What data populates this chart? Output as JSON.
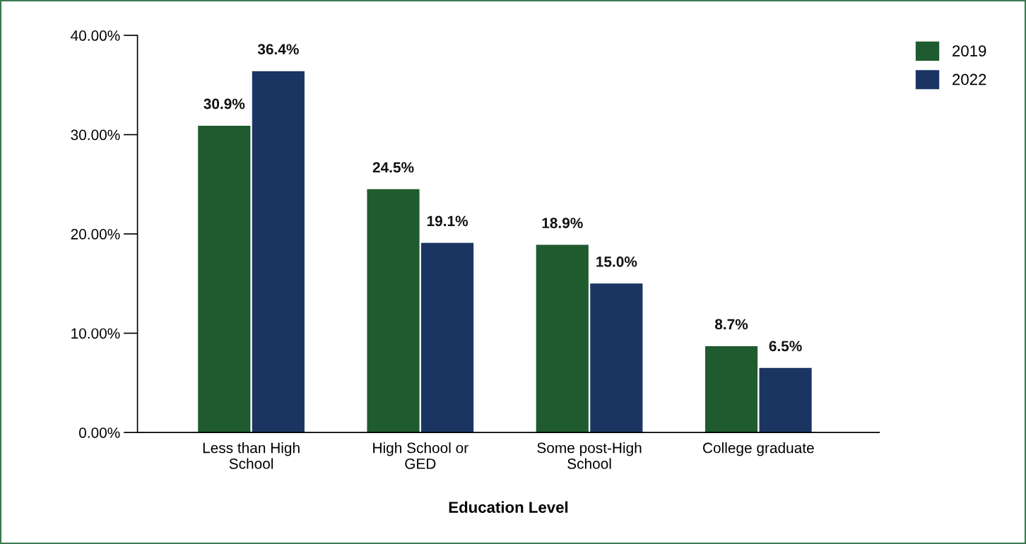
{
  "chart_data": {
    "type": "bar",
    "xlabel": "Education Level",
    "categories": [
      "Less than High\nSchool",
      "High School or\nGED",
      "Some post-High\nSchool",
      "College graduate"
    ],
    "series": [
      {
        "name": "2019",
        "color": "#1f5b2e",
        "values": [
          30.9,
          24.5,
          18.9,
          8.7
        ],
        "value_labels": [
          "30.9%",
          "24.5%",
          "18.9%",
          "8.7%"
        ]
      },
      {
        "name": "2022",
        "color": "#1b3562",
        "values": [
          36.4,
          19.1,
          15.0,
          6.5
        ],
        "value_labels": [
          "36.4%",
          "19.1%",
          "15.0%",
          "6.5%"
        ]
      }
    ],
    "ylim": [
      0,
      40
    ],
    "yticks": [
      {
        "value": 0,
        "label": "0.00%"
      },
      {
        "value": 10,
        "label": "10.00%"
      },
      {
        "value": 20,
        "label": "20.00%"
      },
      {
        "value": 30,
        "label": "30.00%"
      },
      {
        "value": 40,
        "label": "40.00%"
      }
    ],
    "grid": false,
    "legend": "top right"
  }
}
